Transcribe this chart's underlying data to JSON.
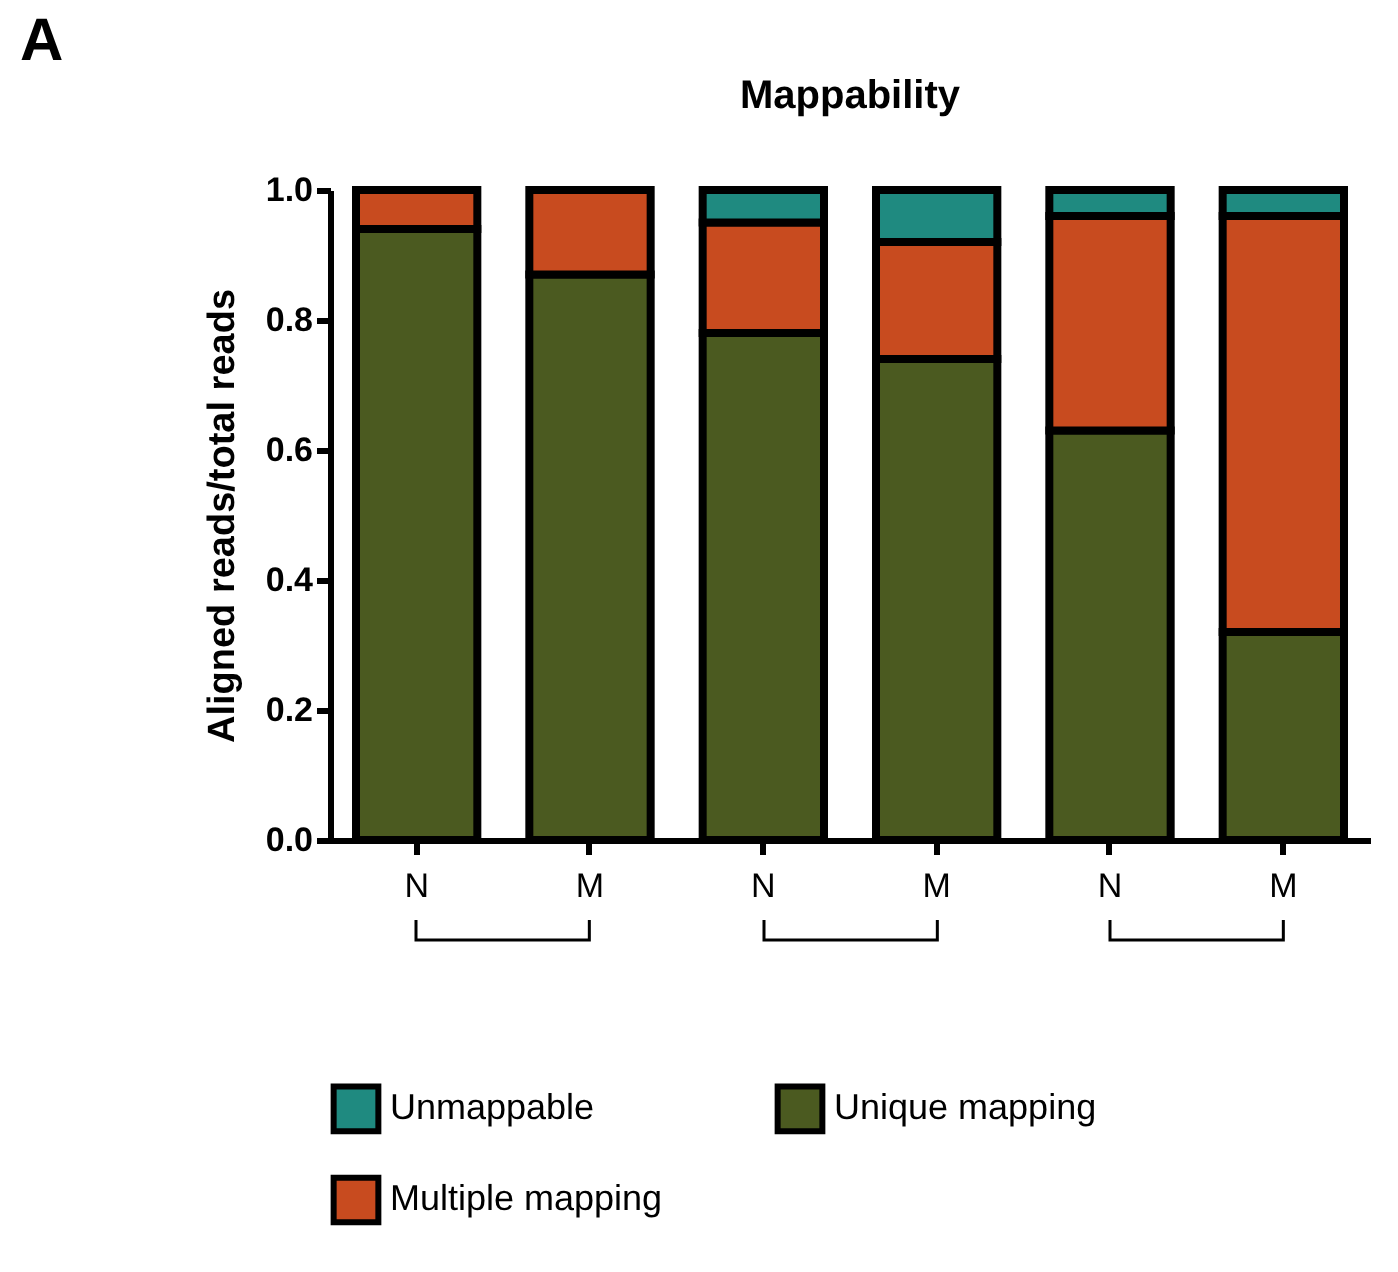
{
  "chart_data": {
    "type": "bar",
    "title": "Mappability",
    "ylabel": "Aligned reads/total reads",
    "annotations": [
      "A"
    ],
    "categories": [
      "N",
      "M",
      "N",
      "M",
      "N",
      "M"
    ],
    "stacked": true,
    "series": [
      {
        "name": "Unique mapping",
        "color": "#4b5a20",
        "values": [
          0.94,
          0.87,
          0.78,
          0.74,
          0.63,
          0.32
        ]
      },
      {
        "name": "Multiple mapping",
        "color": "#c84b1f",
        "values": [
          0.06,
          0.13,
          0.17,
          0.18,
          0.33,
          0.64
        ]
      },
      {
        "name": "Unmappable",
        "color": "#1f8a80",
        "values": [
          null,
          null,
          0.05,
          0.08,
          0.04,
          0.04
        ]
      }
    ],
    "ylim": [
      0,
      1
    ],
    "yticks": [
      {
        "value": 0,
        "label": "0.0"
      },
      {
        "value": 0.2,
        "label": "0.2"
      },
      {
        "value": 0.4,
        "label": "0.4"
      },
      {
        "value": 0.6,
        "label": "0.6"
      },
      {
        "value": 0.8,
        "label": "0.8"
      },
      {
        "value": 1,
        "label": "1.0"
      }
    ],
    "grid": false,
    "legend": "bottom"
  }
}
